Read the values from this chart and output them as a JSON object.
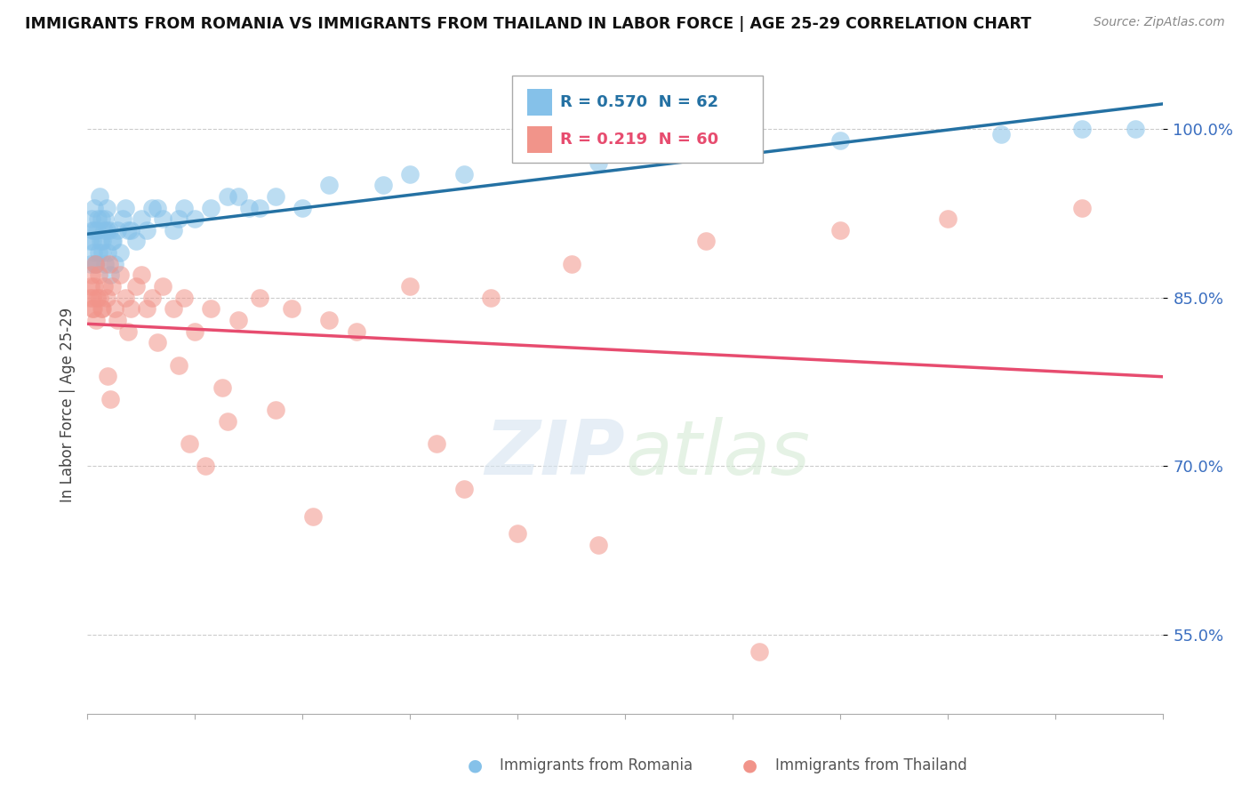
{
  "title": "IMMIGRANTS FROM ROMANIA VS IMMIGRANTS FROM THAILAND IN LABOR FORCE | AGE 25-29 CORRELATION CHART",
  "source": "Source: ZipAtlas.com",
  "ylabel": "In Labor Force | Age 25-29",
  "xlim": [
    0.0,
    20.0
  ],
  "ylim": [
    48.0,
    103.0
  ],
  "yticks": [
    55.0,
    70.0,
    85.0,
    100.0
  ],
  "legend_r1": "R = 0.570",
  "legend_n1": "N = 62",
  "legend_r2": "R = 0.219",
  "legend_n2": "N = 60",
  "color_romania": "#85C1E9",
  "color_thailand": "#F1948A",
  "color_line_romania": "#2471A3",
  "color_line_thailand": "#E74C6F",
  "romania_x": [
    0.05,
    0.08,
    0.1,
    0.12,
    0.15,
    0.18,
    0.2,
    0.22,
    0.25,
    0.28,
    0.3,
    0.32,
    0.35,
    0.38,
    0.4,
    0.42,
    0.45,
    0.5,
    0.55,
    0.6,
    0.65,
    0.7,
    0.8,
    0.9,
    1.0,
    1.1,
    1.2,
    1.4,
    1.6,
    1.8,
    2.0,
    2.3,
    2.6,
    3.0,
    3.5,
    4.0,
    5.5,
    7.0,
    9.5,
    11.0,
    14.0,
    17.0,
    18.5,
    19.5,
    0.06,
    0.09,
    0.11,
    0.13,
    0.16,
    0.19,
    0.24,
    0.27,
    0.33,
    0.36,
    0.48,
    0.75,
    1.3,
    1.7,
    2.8,
    3.2,
    4.5,
    6.0
  ],
  "romania_y": [
    90.0,
    92.0,
    91.0,
    93.0,
    88.0,
    91.0,
    89.0,
    94.0,
    92.0,
    90.0,
    91.0,
    88.0,
    93.0,
    89.0,
    91.0,
    87.0,
    90.0,
    88.0,
    91.0,
    89.0,
    92.0,
    93.0,
    91.0,
    90.0,
    92.0,
    91.0,
    93.0,
    92.0,
    91.0,
    93.0,
    92.0,
    93.0,
    94.0,
    93.0,
    94.0,
    93.0,
    95.0,
    96.0,
    97.0,
    98.0,
    99.0,
    99.5,
    100.0,
    100.0,
    88.0,
    90.0,
    89.0,
    91.0,
    88.0,
    92.0,
    90.0,
    89.0,
    92.0,
    91.0,
    90.0,
    91.0,
    93.0,
    92.0,
    94.0,
    93.0,
    95.0,
    96.0
  ],
  "thailand_x": [
    0.05,
    0.08,
    0.1,
    0.12,
    0.15,
    0.18,
    0.2,
    0.25,
    0.3,
    0.35,
    0.4,
    0.45,
    0.5,
    0.6,
    0.7,
    0.8,
    0.9,
    1.0,
    1.2,
    1.4,
    1.6,
    1.8,
    2.0,
    2.3,
    2.8,
    3.2,
    3.8,
    4.5,
    5.0,
    6.0,
    7.5,
    9.0,
    11.5,
    14.0,
    16.0,
    18.5,
    0.06,
    0.09,
    0.11,
    0.16,
    0.22,
    0.28,
    0.55,
    0.75,
    1.1,
    1.3,
    1.7,
    2.5,
    3.5,
    6.5,
    7.0,
    9.5,
    0.38,
    0.42,
    1.9,
    4.2,
    12.5,
    2.2,
    2.6,
    8.0
  ],
  "thailand_y": [
    85.0,
    87.0,
    84.0,
    86.0,
    88.0,
    85.0,
    87.0,
    84.0,
    86.0,
    85.0,
    88.0,
    86.0,
    84.0,
    87.0,
    85.0,
    84.0,
    86.0,
    87.0,
    85.0,
    86.0,
    84.0,
    85.0,
    82.0,
    84.0,
    83.0,
    85.0,
    84.0,
    83.0,
    82.0,
    86.0,
    85.0,
    88.0,
    90.0,
    91.0,
    92.0,
    93.0,
    86.0,
    85.0,
    84.0,
    83.0,
    85.0,
    84.0,
    83.0,
    82.0,
    84.0,
    81.0,
    79.0,
    77.0,
    75.0,
    72.0,
    68.0,
    63.0,
    78.0,
    76.0,
    72.0,
    65.5,
    53.5,
    70.0,
    74.0,
    64.0
  ]
}
